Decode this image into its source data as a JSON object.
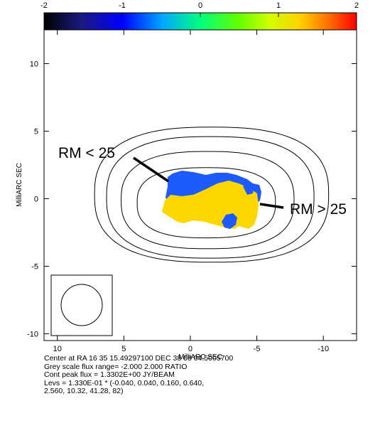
{
  "chart_data": {
    "type": "contour",
    "colorbar": {
      "ticks": [
        "-2",
        "-1",
        "0",
        "1",
        "2"
      ],
      "range": [
        -2,
        2
      ],
      "colors": [
        "#000000",
        "#1e1e96",
        "#0000ff",
        "#00a0ff",
        "#00ff90",
        "#40ff00",
        "#c8ff00",
        "#ffd700",
        "#ff8000",
        "#ff0000"
      ]
    },
    "x_axis": {
      "label": "MilliARC SEC",
      "range": [
        11,
        -12.5
      ],
      "ticks": [
        10,
        5,
        0,
        -5,
        -10
      ],
      "tick_labels": [
        "10",
        "5",
        "0",
        "-5",
        "-10"
      ]
    },
    "y_axis": {
      "label": "MilliARC SEC",
      "range": [
        -10.5,
        12.5
      ],
      "ticks": [
        10,
        5,
        0,
        -5,
        -10
      ],
      "tick_labels": [
        "10",
        "5",
        "0",
        "-5",
        "-10"
      ]
    },
    "contours": [
      {
        "level": "0.640",
        "cx": -1.2,
        "cy": -0.3,
        "rx": 5.2,
        "ry": 2.6
      },
      {
        "level": "0.160",
        "cx": -1.3,
        "cy": -0.1,
        "rx": 6.5,
        "ry": 3.6
      },
      {
        "level": "0.040",
        "cx": -1.5,
        "cy": 0.1,
        "rx": 7.8,
        "ry": 4.5
      },
      {
        "level": "-0.040",
        "cx": -1.6,
        "cy": 0.3,
        "rx": 8.8,
        "ry": 5.0
      }
    ],
    "regions": [
      {
        "label": "RM < 25",
        "color": "#1e5bff",
        "value": "low"
      },
      {
        "label": "RM > 25",
        "color": "#ffd700",
        "value": "high"
      }
    ],
    "beam": {
      "cx": 7.9,
      "cy": -8.0,
      "r": 1.55
    }
  },
  "annotations": {
    "rm_low": "RM < 25",
    "rm_high": "RM > 25"
  },
  "caption": {
    "line1": "Center at RA 16 35 15.49297100  DEC 38 08 04.5005700",
    "line2": "Grey scale flux range= -2.000 2.000 RATIO",
    "line3": "Cont peak flux =  1.3302E+00 JY/BEAM",
    "line4": "Levs = 1.330E-01 * (-0.040, 0.040, 0.160, 0.640,",
    "line5": "2.560, 10.32, 41.28, 82)"
  },
  "colors": {
    "blue": "#1e5bff",
    "yellow": "#ffd700"
  }
}
